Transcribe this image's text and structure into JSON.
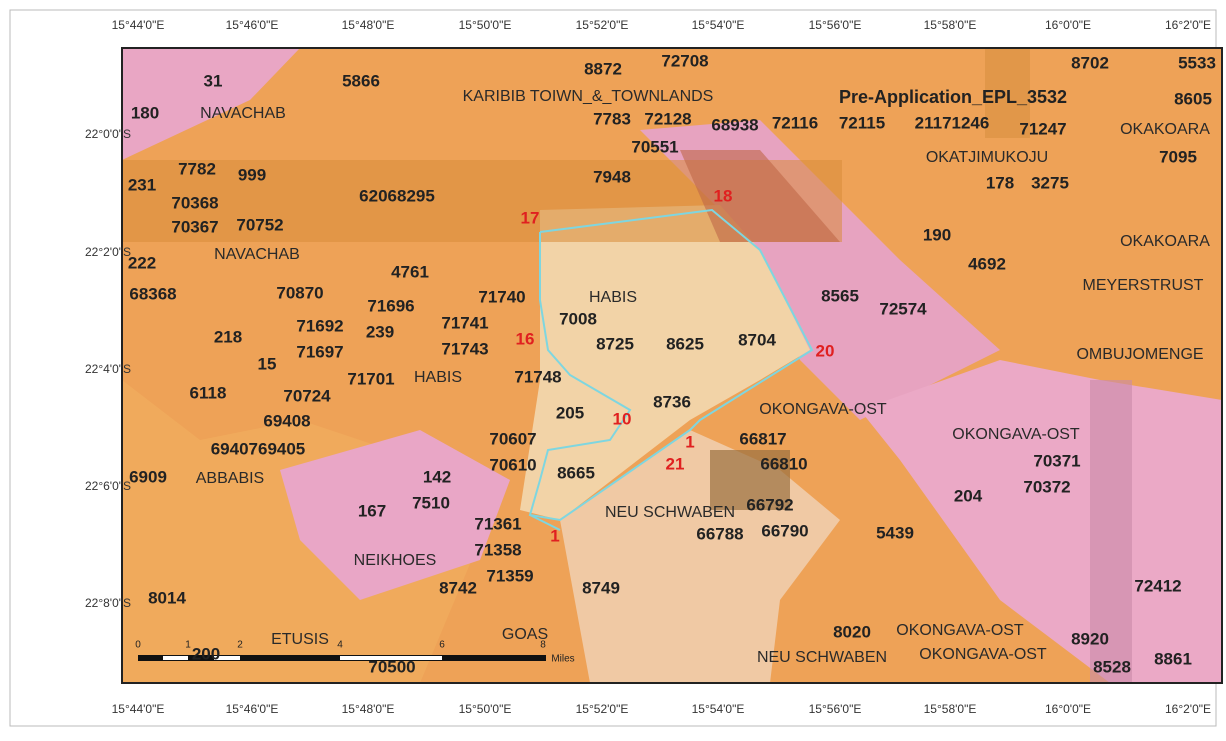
{
  "axes": {
    "lon_ticks": [
      "15°44'0\"E",
      "15°46'0\"E",
      "15°48'0\"E",
      "15°50'0\"E",
      "15°52'0\"E",
      "15°54'0\"E",
      "15°56'0\"E",
      "15°58'0\"E",
      "16°0'0\"E",
      "16°2'0\"E"
    ],
    "lat_ticks": [
      "22°0'0\"S",
      "22°2'0\"S",
      "22°4'0\"S",
      "22°6'0\"S",
      "22°8'0\"S"
    ]
  },
  "annotation": "Pre-Application_EPL_3532",
  "parcels": [
    "31",
    "180",
    "5866",
    "8872",
    "72708",
    "8702",
    "5533",
    "8605",
    "7783",
    "72128",
    "68938",
    "72116",
    "72115",
    "21171246",
    "71247",
    "70551",
    "7095",
    "178",
    "3275",
    "7782",
    "999",
    "7948",
    "231",
    "70368",
    "62068295",
    "70367",
    "70752",
    "190",
    "222",
    "4692",
    "4761",
    "68368",
    "70870",
    "71740",
    "8565",
    "72574",
    "71696",
    "7008",
    "71692",
    "239",
    "71741",
    "218",
    "8725",
    "8625",
    "8704",
    "71743",
    "71697",
    "15",
    "71701",
    "71748",
    "6118",
    "70724",
    "8736",
    "205",
    "69408",
    "66817",
    "70607",
    "6940769405",
    "70371",
    "70610",
    "66810",
    "8665",
    "142",
    "6909",
    "70372",
    "204",
    "7510",
    "167",
    "66792",
    "71361",
    "66788",
    "66790",
    "5439",
    "71358",
    "71359",
    "8742",
    "8749",
    "72412",
    "8014",
    "8020",
    "8920",
    "200",
    "70500",
    "8528",
    "8861"
  ],
  "farms": [
    "NAVACHAB",
    "KARIBIB TOIWN_&_TOWNLANDS",
    "OKAKOARA",
    "OKATJIMUKOJU",
    "NAVACHAB",
    "OKAKOARA",
    "MEYERSTRUST",
    "HABIS",
    "OMBUJOMENGE",
    "HABIS",
    "OKONGAVA-OST",
    "OKONGAVA-OST",
    "ABBABIS",
    "NEU SCHWABEN",
    "NEIKHOES",
    "ETUSIS",
    "GOAS",
    "OKONGAVA-OST",
    "NEU SCHWABEN",
    "OKONGAVA-OST"
  ],
  "vertices": [
    "17",
    "18",
    "16",
    "20",
    "10",
    "1",
    "21",
    "1"
  ],
  "scale": {
    "labels": [
      "0",
      "1",
      "2",
      "4",
      "6",
      "8"
    ],
    "unit": "Miles"
  }
}
